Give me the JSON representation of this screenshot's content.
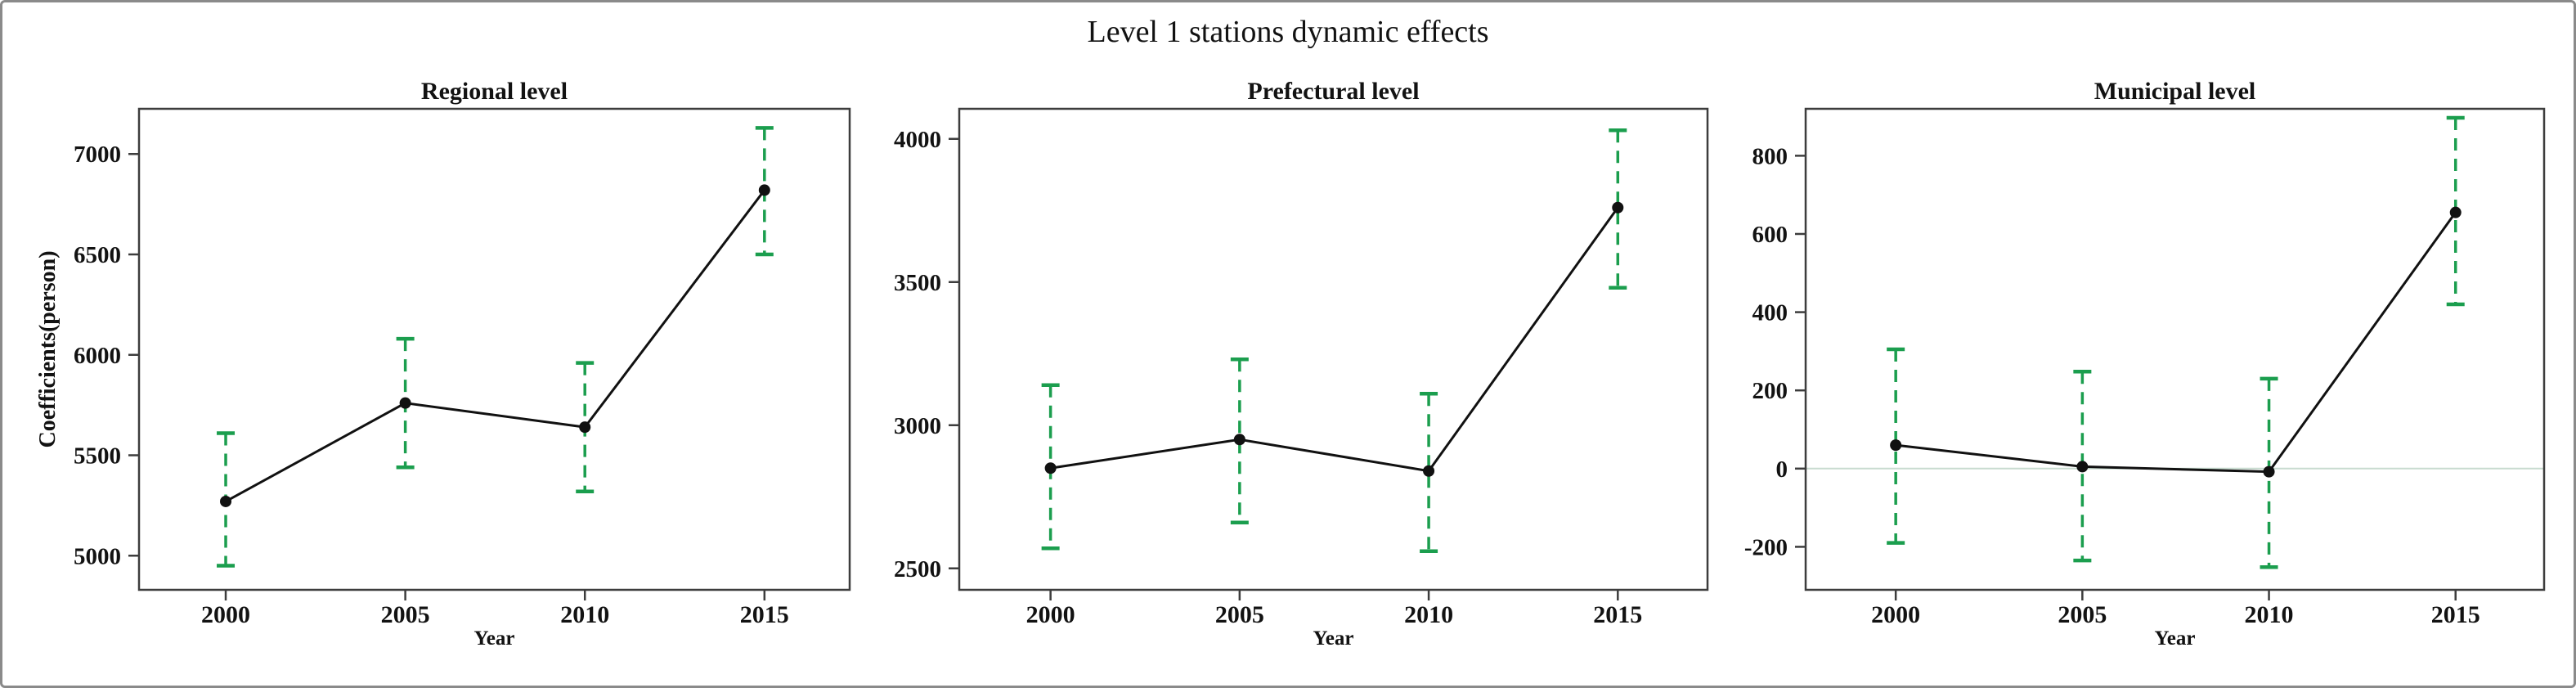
{
  "title": "Level 1 stations dynamic effects",
  "colors": {
    "error_bar": "#1b9e4e",
    "series_line": "#111111",
    "marker": "#111111",
    "zero_line": "#c8dbd0",
    "axis": "#3d3d3d",
    "frame_border": "#8a8a8a",
    "text": "#121212"
  },
  "chart_data": [
    {
      "type": "line",
      "title": "Regional level",
      "xlabel": "Year",
      "ylabel": "Coefficients(person)",
      "x": [
        2000,
        2005,
        2010,
        2015
      ],
      "series": [
        {
          "name": "coefficient",
          "values": [
            5270,
            5760,
            5640,
            6820
          ]
        }
      ],
      "ci_low": [
        4950,
        5440,
        5320,
        6500
      ],
      "ci_high": [
        5610,
        6080,
        5960,
        7130
      ],
      "yticks": [
        5000,
        5500,
        6000,
        6500,
        7000
      ],
      "ylim": [
        4830,
        7225
      ],
      "grid": false,
      "zero_line": false,
      "legend": "none",
      "error_bar_style": "dashed-green-caps"
    },
    {
      "type": "line",
      "title": "Prefectural level",
      "xlabel": "Year",
      "ylabel": "",
      "x": [
        2000,
        2005,
        2010,
        2015
      ],
      "series": [
        {
          "name": "coefficient",
          "values": [
            2850,
            2950,
            2840,
            3760
          ]
        }
      ],
      "ci_low": [
        2570,
        2660,
        2560,
        3480
      ],
      "ci_high": [
        3140,
        3230,
        3110,
        4030
      ],
      "yticks": [
        2500,
        3000,
        3500,
        4000
      ],
      "ylim": [
        2425,
        4105
      ],
      "grid": false,
      "zero_line": false,
      "legend": "none",
      "error_bar_style": "dashed-green-caps"
    },
    {
      "type": "line",
      "title": "Municipal level",
      "xlabel": "Year",
      "ylabel": "",
      "x": [
        2000,
        2005,
        2010,
        2015
      ],
      "series": [
        {
          "name": "coefficient",
          "values": [
            60,
            5,
            -8,
            655
          ]
        }
      ],
      "ci_low": [
        -190,
        -235,
        -252,
        420
      ],
      "ci_high": [
        305,
        248,
        230,
        897
      ],
      "yticks": [
        -200,
        0,
        200,
        400,
        600,
        800
      ],
      "ylim": [
        -310,
        920
      ],
      "grid": false,
      "zero_line": true,
      "legend": "none",
      "error_bar_style": "dashed-green-caps"
    }
  ]
}
